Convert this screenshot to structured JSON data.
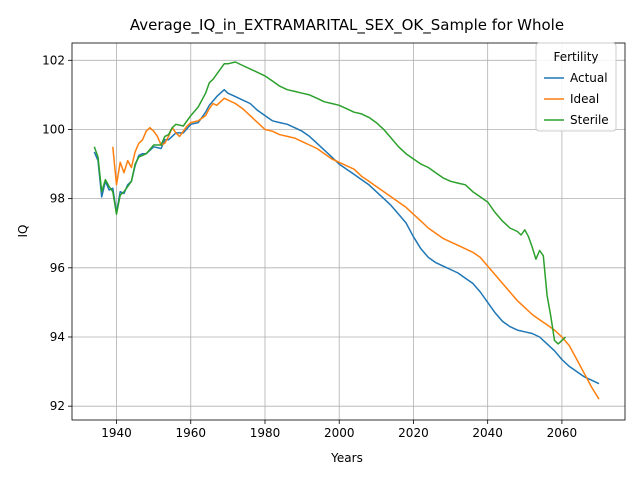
{
  "chart_data": {
    "type": "line",
    "title": "Average_IQ_in_EXTRAMARITAL_SEX_OK_Sample for Whole",
    "xlabel": "Years",
    "ylabel": "IQ",
    "xlim": [
      1928,
      2077
    ],
    "ylim": [
      91.6,
      102.5
    ],
    "xticks": [
      1940,
      1960,
      1980,
      2000,
      2020,
      2040,
      2060
    ],
    "yticks": [
      92,
      94,
      96,
      98,
      100,
      102
    ],
    "grid": true,
    "legend": {
      "title": "Fertility",
      "placement": "top-right"
    },
    "series": [
      {
        "name": "Actual",
        "color": "#1f77b4",
        "x": [
          1934,
          1935,
          1936,
          1937,
          1938,
          1939,
          1940,
          1941,
          1942,
          1943,
          1944,
          1945,
          1946,
          1947,
          1948,
          1950,
          1952,
          1953,
          1954,
          1956,
          1958,
          1960,
          1962,
          1963,
          1964,
          1965,
          1967,
          1969,
          1970,
          1972,
          1974,
          1976,
          1978,
          1980,
          1982,
          1984,
          1986,
          1988,
          1990,
          1992,
          1994,
          1996,
          1998,
          2000,
          2002,
          2004,
          2006,
          2008,
          2010,
          2012,
          2014,
          2016,
          2018,
          2020,
          2022,
          2024,
          2026,
          2028,
          2030,
          2032,
          2034,
          2036,
          2038,
          2040,
          2042,
          2044,
          2046,
          2048,
          2050,
          2052,
          2054,
          2056,
          2058,
          2060,
          2062,
          2064,
          2066,
          2068,
          2070
        ],
        "y": [
          99.35,
          99.1,
          98.05,
          98.5,
          98.25,
          98.3,
          97.6,
          98.2,
          98.15,
          98.4,
          98.5,
          98.95,
          99.25,
          99.3,
          99.3,
          99.5,
          99.45,
          99.7,
          99.7,
          99.9,
          99.9,
          100.15,
          100.2,
          100.35,
          100.5,
          100.7,
          100.95,
          101.15,
          101.05,
          100.95,
          100.85,
          100.75,
          100.55,
          100.4,
          100.25,
          100.2,
          100.15,
          100.05,
          99.95,
          99.8,
          99.6,
          99.4,
          99.2,
          99.0,
          98.85,
          98.7,
          98.55,
          98.4,
          98.2,
          98.0,
          97.8,
          97.55,
          97.3,
          96.9,
          96.55,
          96.3,
          96.15,
          96.05,
          95.95,
          95.85,
          95.7,
          95.55,
          95.3,
          95.0,
          94.7,
          94.45,
          94.3,
          94.2,
          94.15,
          94.1,
          94.0,
          93.8,
          93.6,
          93.35,
          93.15,
          93.0,
          92.85,
          92.75,
          92.65
        ]
      },
      {
        "name": "Ideal",
        "color": "#ff7f0e",
        "x": [
          1939,
          1940,
          1941,
          1942,
          1943,
          1944,
          1945,
          1946,
          1947,
          1948,
          1949,
          1950,
          1951,
          1952,
          1953,
          1954,
          1955,
          1956,
          1957,
          1958,
          1959,
          1960,
          1962,
          1964,
          1965,
          1966,
          1967,
          1968,
          1969,
          1970,
          1972,
          1974,
          1976,
          1978,
          1980,
          1982,
          1984,
          1986,
          1988,
          1990,
          1992,
          1994,
          1996,
          1998,
          2000,
          2002,
          2004,
          2006,
          2008,
          2010,
          2012,
          2014,
          2016,
          2018,
          2020,
          2022,
          2024,
          2026,
          2028,
          2030,
          2032,
          2034,
          2036,
          2038,
          2040,
          2042,
          2044,
          2046,
          2048,
          2050,
          2052,
          2054,
          2056,
          2058,
          2060,
          2062,
          2064,
          2066,
          2068,
          2070
        ],
        "y": [
          99.5,
          98.4,
          99.05,
          98.75,
          99.1,
          98.9,
          99.35,
          99.6,
          99.7,
          99.95,
          100.05,
          99.95,
          99.8,
          99.55,
          99.6,
          99.8,
          100.05,
          99.9,
          99.8,
          99.95,
          100.1,
          100.2,
          100.25,
          100.4,
          100.6,
          100.75,
          100.7,
          100.8,
          100.9,
          100.85,
          100.75,
          100.6,
          100.4,
          100.2,
          100.0,
          99.95,
          99.85,
          99.8,
          99.75,
          99.65,
          99.55,
          99.45,
          99.3,
          99.15,
          99.05,
          98.95,
          98.85,
          98.65,
          98.5,
          98.35,
          98.2,
          98.05,
          97.9,
          97.75,
          97.55,
          97.35,
          97.15,
          97.0,
          96.85,
          96.75,
          96.65,
          96.55,
          96.45,
          96.3,
          96.05,
          95.8,
          95.55,
          95.3,
          95.05,
          94.85,
          94.65,
          94.5,
          94.35,
          94.2,
          94.0,
          93.75,
          93.35,
          92.95,
          92.55,
          92.2
        ]
      },
      {
        "name": "Sterile",
        "color": "#2ca02c",
        "x": [
          1934,
          1935,
          1936,
          1937,
          1938,
          1939,
          1940,
          1941,
          1942,
          1943,
          1944,
          1945,
          1946,
          1947,
          1948,
          1950,
          1952,
          1953,
          1954,
          1955,
          1956,
          1958,
          1960,
          1962,
          1964,
          1965,
          1966,
          1968,
          1969,
          1970,
          1972,
          1974,
          1976,
          1978,
          1980,
          1982,
          1984,
          1986,
          1988,
          1990,
          1992,
          1994,
          1996,
          1998,
          2000,
          2002,
          2004,
          2006,
          2008,
          2010,
          2012,
          2014,
          2016,
          2018,
          2020,
          2022,
          2024,
          2026,
          2028,
          2030,
          2032,
          2034,
          2036,
          2038,
          2040,
          2042,
          2044,
          2046,
          2048,
          2049,
          2050,
          2051,
          2052,
          2053,
          2054,
          2055,
          2056,
          2057,
          2058,
          2059,
          2060,
          2061
        ],
        "y": [
          99.5,
          99.2,
          98.2,
          98.55,
          98.35,
          98.2,
          97.55,
          98.1,
          98.2,
          98.35,
          98.5,
          99.0,
          99.2,
          99.25,
          99.3,
          99.55,
          99.55,
          99.8,
          99.85,
          100.05,
          100.15,
          100.1,
          100.4,
          100.65,
          101.05,
          101.35,
          101.45,
          101.75,
          101.9,
          101.9,
          101.95,
          101.85,
          101.75,
          101.65,
          101.55,
          101.4,
          101.25,
          101.15,
          101.1,
          101.05,
          101.0,
          100.9,
          100.8,
          100.75,
          100.7,
          100.6,
          100.5,
          100.45,
          100.35,
          100.2,
          100.0,
          99.75,
          99.5,
          99.3,
          99.15,
          99.0,
          98.9,
          98.75,
          98.6,
          98.5,
          98.45,
          98.4,
          98.2,
          98.05,
          97.9,
          97.6,
          97.35,
          97.15,
          97.05,
          96.95,
          97.1,
          96.9,
          96.6,
          96.25,
          96.5,
          96.35,
          95.2,
          94.6,
          93.9,
          93.8,
          93.9,
          94.0
        ]
      }
    ]
  }
}
